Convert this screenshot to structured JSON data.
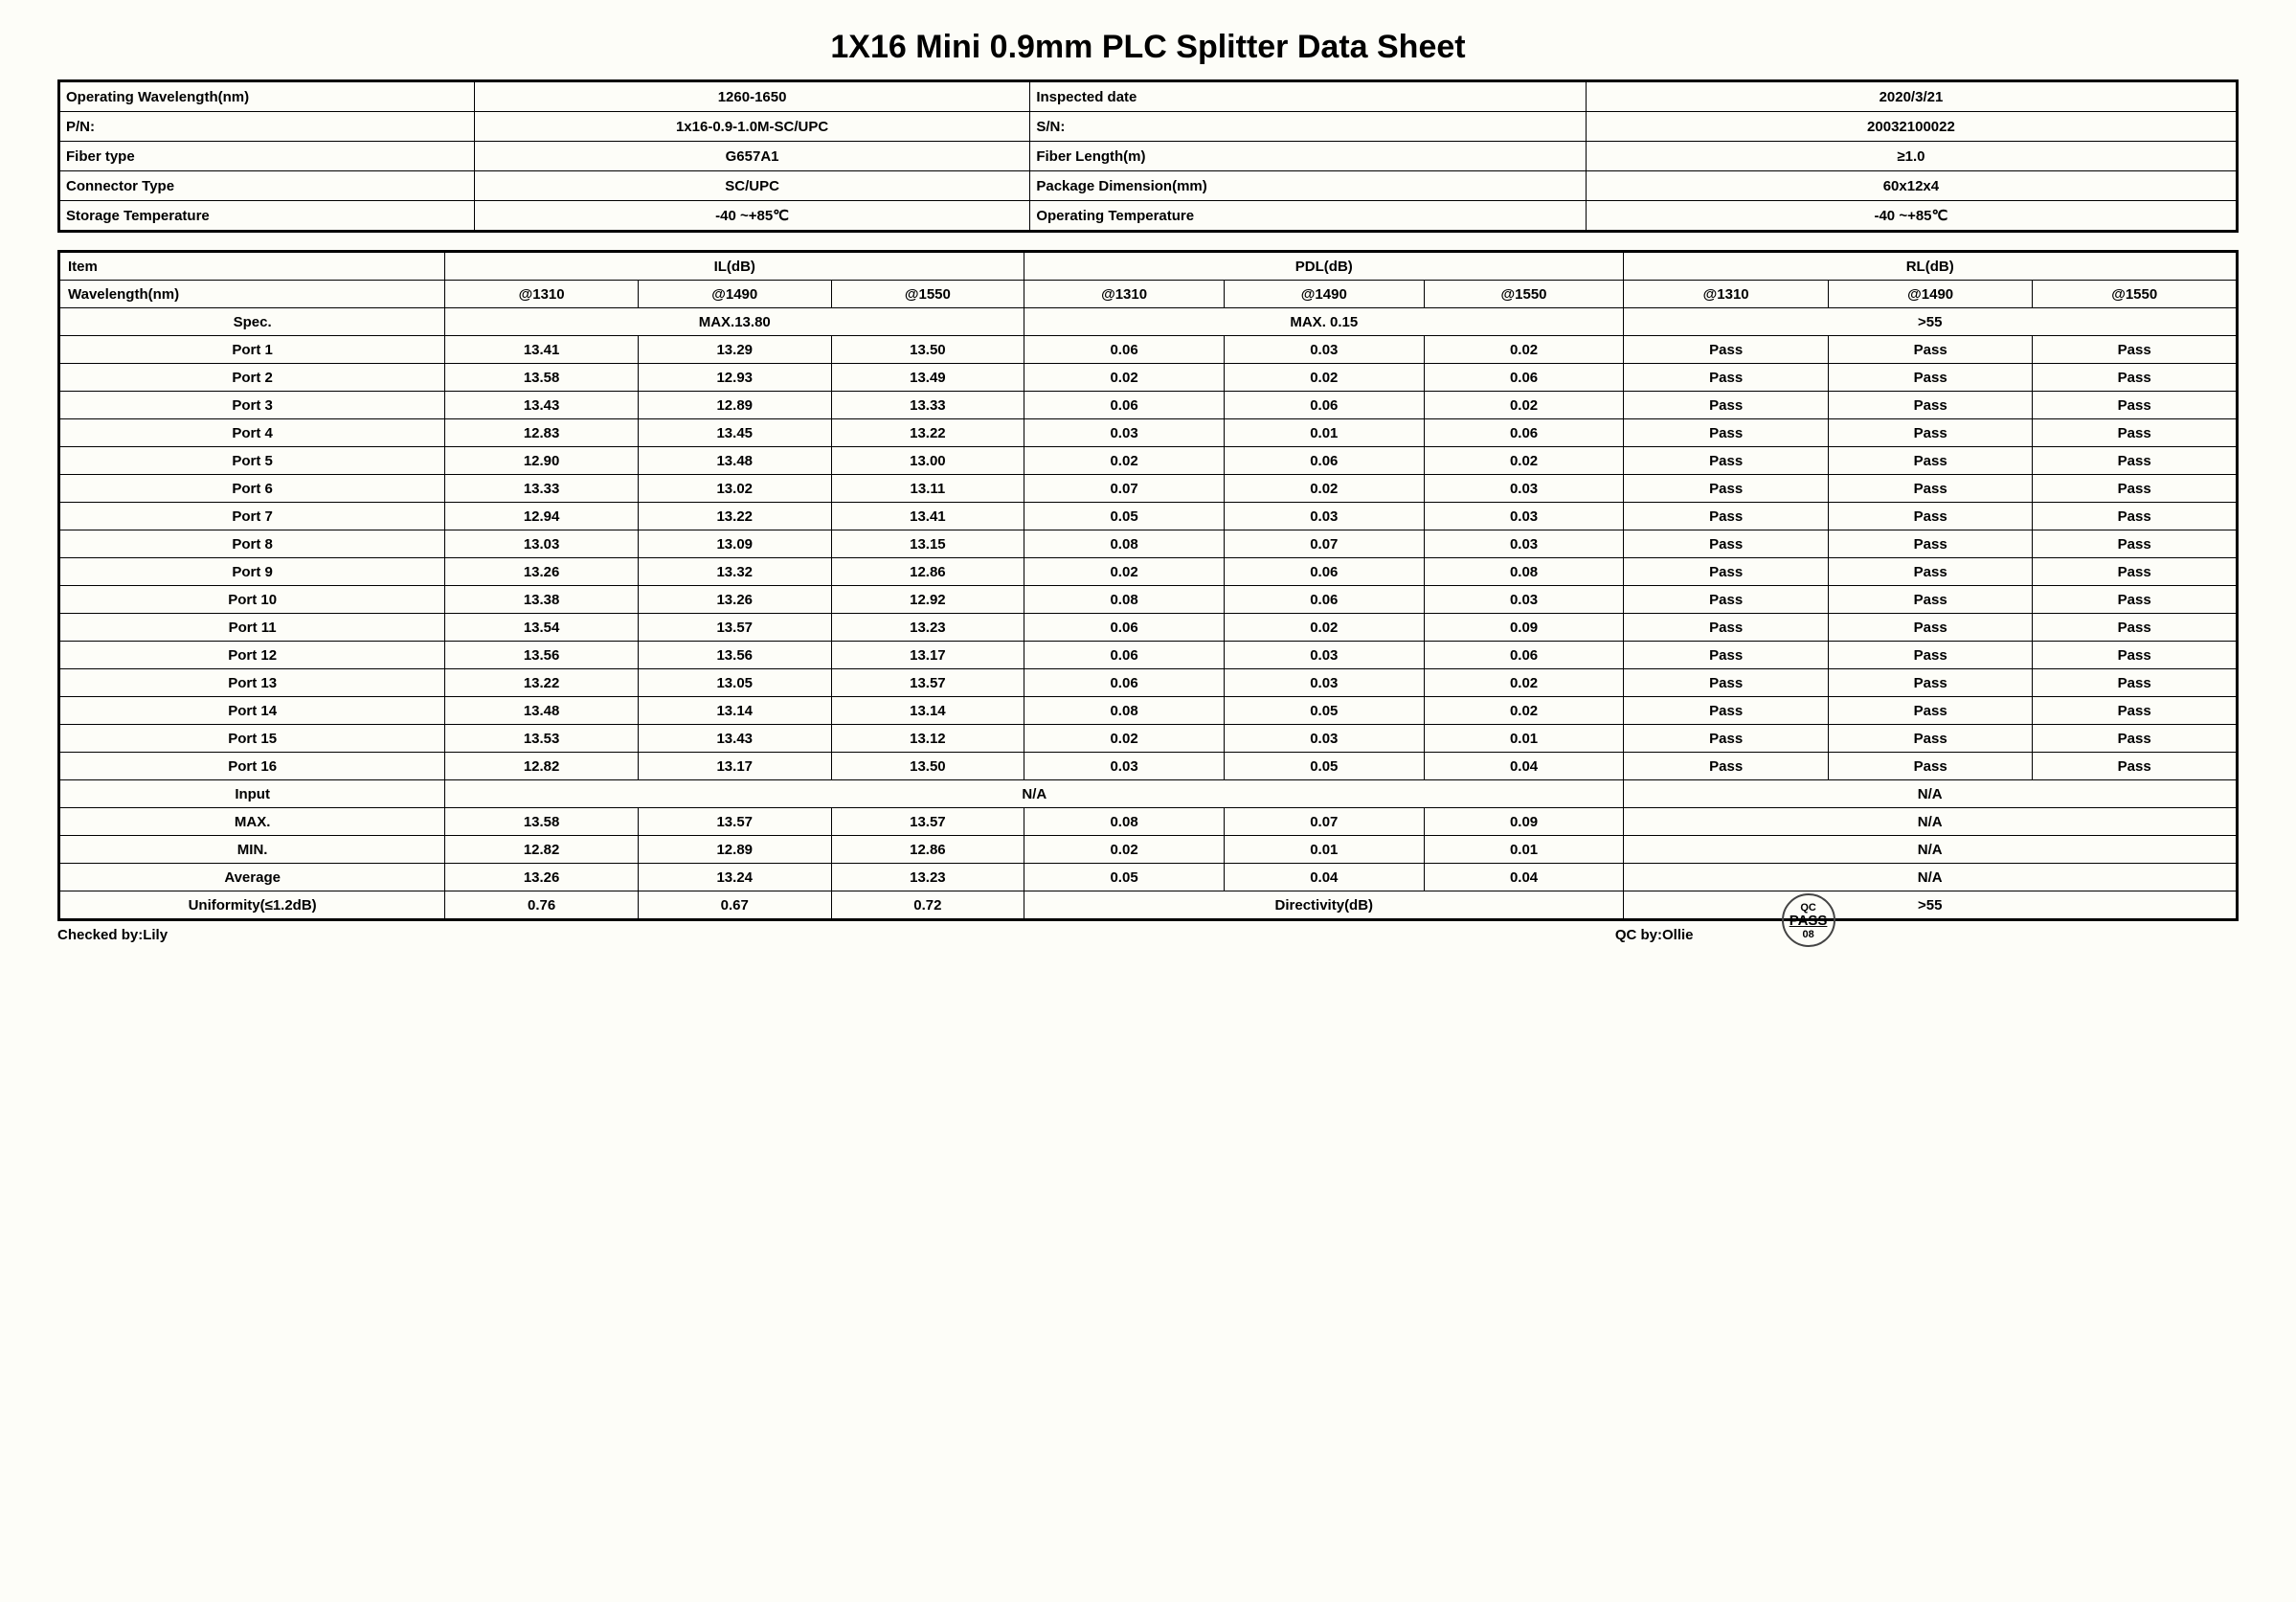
{
  "title": "1X16  Mini 0.9mm PLC Splitter Data Sheet",
  "meta": {
    "rows": [
      {
        "l1": "Operating Wavelength(nm)",
        "v1": "1260-1650",
        "l2": "Inspected date",
        "v2": "2020/3/21"
      },
      {
        "l1": "P/N:",
        "v1": "1x16-0.9-1.0M-SC/UPC",
        "l2": "S/N:",
        "v2": "20032100022"
      },
      {
        "l1": "Fiber type",
        "v1": "G657A1",
        "l2": "Fiber Length(m)",
        "v2": "≥1.0"
      },
      {
        "l1": "Connector Type",
        "v1": "SC/UPC",
        "l2": "Package Dimension(mm)",
        "v2": "60x12x4"
      },
      {
        "l1": "Storage Temperature",
        "v1": "-40 ~+85℃",
        "l2": "Operating Temperature",
        "v2": "-40 ~+85℃"
      }
    ]
  },
  "headers": {
    "item": "Item",
    "wavelength": "Wavelength(nm)",
    "groups": [
      "IL(dB)",
      "PDL(dB)",
      "RL(dB)"
    ],
    "cols": [
      "@1310",
      "@1490",
      "@1550",
      "@1310",
      "@1490",
      "@1550",
      "@1310",
      "@1490",
      "@1550"
    ],
    "spec_label": "Spec.",
    "spec_il": "MAX.13.80",
    "spec_pdl": "MAX. 0.15",
    "spec_rl": ">55"
  },
  "ports": [
    {
      "n": "Port 1",
      "v": [
        "13.41",
        "13.29",
        "13.50",
        "0.06",
        "0.03",
        "0.02",
        "Pass",
        "Pass",
        "Pass"
      ]
    },
    {
      "n": "Port 2",
      "v": [
        "13.58",
        "12.93",
        "13.49",
        "0.02",
        "0.02",
        "0.06",
        "Pass",
        "Pass",
        "Pass"
      ]
    },
    {
      "n": "Port 3",
      "v": [
        "13.43",
        "12.89",
        "13.33",
        "0.06",
        "0.06",
        "0.02",
        "Pass",
        "Pass",
        "Pass"
      ]
    },
    {
      "n": "Port 4",
      "v": [
        "12.83",
        "13.45",
        "13.22",
        "0.03",
        "0.01",
        "0.06",
        "Pass",
        "Pass",
        "Pass"
      ]
    },
    {
      "n": "Port 5",
      "v": [
        "12.90",
        "13.48",
        "13.00",
        "0.02",
        "0.06",
        "0.02",
        "Pass",
        "Pass",
        "Pass"
      ]
    },
    {
      "n": "Port 6",
      "v": [
        "13.33",
        "13.02",
        "13.11",
        "0.07",
        "0.02",
        "0.03",
        "Pass",
        "Pass",
        "Pass"
      ]
    },
    {
      "n": "Port 7",
      "v": [
        "12.94",
        "13.22",
        "13.41",
        "0.05",
        "0.03",
        "0.03",
        "Pass",
        "Pass",
        "Pass"
      ]
    },
    {
      "n": "Port 8",
      "v": [
        "13.03",
        "13.09",
        "13.15",
        "0.08",
        "0.07",
        "0.03",
        "Pass",
        "Pass",
        "Pass"
      ]
    },
    {
      "n": "Port 9",
      "v": [
        "13.26",
        "13.32",
        "12.86",
        "0.02",
        "0.06",
        "0.08",
        "Pass",
        "Pass",
        "Pass"
      ]
    },
    {
      "n": "Port 10",
      "v": [
        "13.38",
        "13.26",
        "12.92",
        "0.08",
        "0.06",
        "0.03",
        "Pass",
        "Pass",
        "Pass"
      ]
    },
    {
      "n": "Port 11",
      "v": [
        "13.54",
        "13.57",
        "13.23",
        "0.06",
        "0.02",
        "0.09",
        "Pass",
        "Pass",
        "Pass"
      ]
    },
    {
      "n": "Port 12",
      "v": [
        "13.56",
        "13.56",
        "13.17",
        "0.06",
        "0.03",
        "0.06",
        "Pass",
        "Pass",
        "Pass"
      ]
    },
    {
      "n": "Port 13",
      "v": [
        "13.22",
        "13.05",
        "13.57",
        "0.06",
        "0.03",
        "0.02",
        "Pass",
        "Pass",
        "Pass"
      ]
    },
    {
      "n": "Port 14",
      "v": [
        "13.48",
        "13.14",
        "13.14",
        "0.08",
        "0.05",
        "0.02",
        "Pass",
        "Pass",
        "Pass"
      ]
    },
    {
      "n": "Port 15",
      "v": [
        "13.53",
        "13.43",
        "13.12",
        "0.02",
        "0.03",
        "0.01",
        "Pass",
        "Pass",
        "Pass"
      ]
    },
    {
      "n": "Port 16",
      "v": [
        "12.82",
        "13.17",
        "13.50",
        "0.03",
        "0.05",
        "0.04",
        "Pass",
        "Pass",
        "Pass"
      ]
    }
  ],
  "summary": {
    "input": {
      "label": "Input",
      "left": "N/A",
      "right": "N/A"
    },
    "max": {
      "label": "MAX.",
      "v": [
        "13.58",
        "13.57",
        "13.57",
        "0.08",
        "0.07",
        "0.09"
      ],
      "right": "N/A"
    },
    "min": {
      "label": "MIN.",
      "v": [
        "12.82",
        "12.89",
        "12.86",
        "0.02",
        "0.01",
        "0.01"
      ],
      "right": "N/A"
    },
    "avg": {
      "label": "Average",
      "v": [
        "13.26",
        "13.24",
        "13.23",
        "0.05",
        "0.04",
        "0.04"
      ],
      "right": "N/A"
    },
    "uniformity": {
      "label": "Uniformity(≤1.2dB)",
      "v": [
        "0.76",
        "0.67",
        "0.72"
      ],
      "mid": "Directivity(dB)",
      "right": ">55"
    }
  },
  "footer": {
    "checked": "Checked by:Lily",
    "qc": "QC by:Ollie",
    "stamp": {
      "top": "QC",
      "mid": "PASS",
      "bot": "08"
    }
  }
}
